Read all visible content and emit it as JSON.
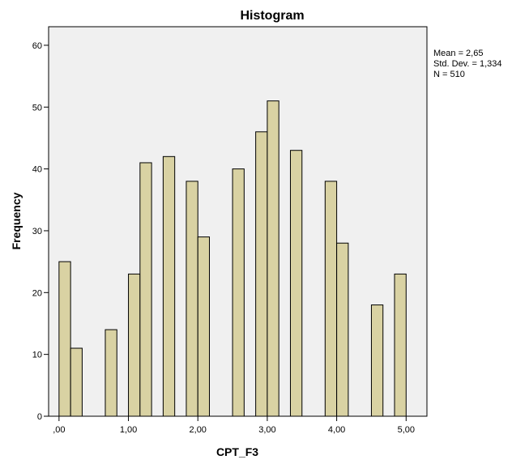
{
  "chart_data": {
    "type": "bar",
    "title": "Histogram",
    "xlabel": "CPT_F3",
    "ylabel": "Frequency",
    "ylim": [
      0,
      63
    ],
    "xlim": [
      -0.15,
      5.3
    ],
    "grid": false,
    "legend": "none",
    "bin_width": 0.1667,
    "x": [
      0.0,
      0.1667,
      0.6667,
      1.0,
      1.1667,
      1.5,
      1.8333,
      2.0,
      2.5,
      2.8333,
      3.0,
      3.3333,
      3.8333,
      4.0,
      4.5,
      4.8333
    ],
    "values": [
      25,
      11,
      14,
      23,
      41,
      42,
      38,
      29,
      40,
      46,
      51,
      43,
      38,
      28,
      18,
      23
    ],
    "x_ticks": [
      0,
      1,
      2,
      3,
      4,
      5
    ],
    "x_tick_labels": [
      ",00",
      "1,00",
      "2,00",
      "3,00",
      "4,00",
      "5,00"
    ],
    "y_ticks": [
      0,
      10,
      20,
      30,
      40,
      50,
      60
    ],
    "y_tick_labels": [
      "0",
      "10",
      "20",
      "30",
      "40",
      "50",
      "60"
    ],
    "stats": {
      "mean": "Mean = 2,65",
      "std": "Std. Dev. = 1,334",
      "n": "N = 510"
    },
    "colors": {
      "bar_fill": "#d9d2a3",
      "bar_stroke": "#000000",
      "plot_background": "#f0f0f0",
      "frame": "#000000"
    }
  }
}
